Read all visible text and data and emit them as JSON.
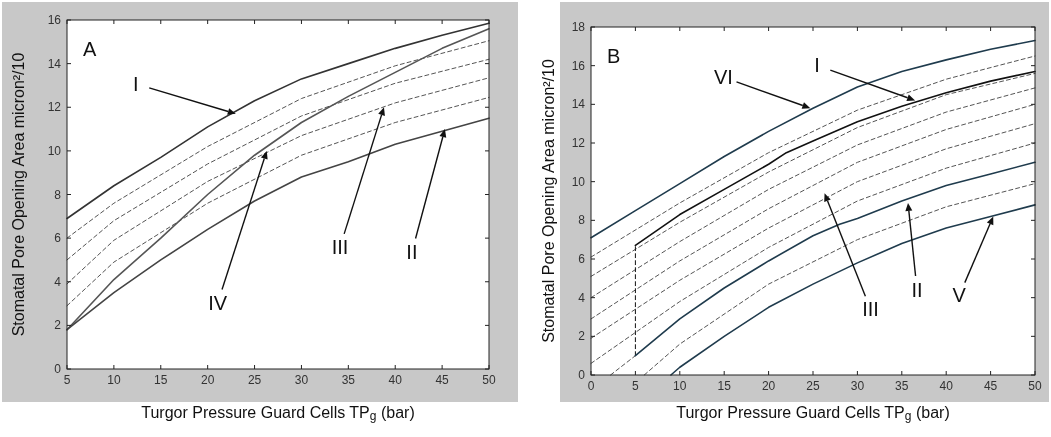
{
  "chart_data": [
    {
      "type": "line",
      "title": "A",
      "xlabel": "Turgor Pressure Guard Cells TP$_{g}$ (bar)",
      "ylabel": "Stomatal Pore Opening Area micron²/10",
      "xlim": [
        5,
        50
      ],
      "xticks": [
        5,
        10,
        15,
        20,
        25,
        30,
        35,
        40,
        45,
        50
      ],
      "ylim": [
        0,
        16
      ],
      "yticks": [
        0,
        2,
        4,
        6,
        8,
        10,
        12,
        14,
        16
      ],
      "grid": false,
      "series": [
        {
          "color": "#333333",
          "line_style": "solid",
          "x": [
            5,
            10,
            15,
            20,
            25,
            30,
            35,
            40,
            45,
            50
          ],
          "values": [
            6.9,
            8.4,
            9.7,
            11.1,
            12.3,
            13.3,
            14.0,
            14.7,
            15.3,
            15.85
          ]
        },
        {
          "color": "#555555",
          "line_style": "dashed",
          "x": [
            5,
            10,
            20,
            30,
            40,
            50
          ],
          "values": [
            6.0,
            7.6,
            10.2,
            12.4,
            13.9,
            15.05
          ]
        },
        {
          "color": "#555555",
          "line_style": "dashed",
          "x": [
            5,
            10,
            20,
            30,
            40,
            50
          ],
          "values": [
            5.0,
            6.8,
            9.4,
            11.6,
            13.1,
            14.2
          ]
        },
        {
          "color": "#555555",
          "line_style": "dashed",
          "x": [
            5,
            10,
            20,
            30,
            40,
            50
          ],
          "values": [
            3.9,
            5.9,
            8.6,
            10.7,
            12.2,
            13.35
          ]
        },
        {
          "color": "#555555",
          "line_style": "dashed",
          "x": [
            5,
            10,
            20,
            30,
            40,
            50
          ],
          "values": [
            2.9,
            4.9,
            7.6,
            9.8,
            11.3,
            12.45
          ]
        },
        {
          "color": "#555555",
          "line_style": "solid",
          "x": [
            5,
            10,
            15,
            20,
            25,
            30,
            35,
            40,
            45,
            50
          ],
          "values": [
            1.8,
            4.1,
            6.0,
            8.0,
            9.8,
            11.3,
            12.5,
            13.6,
            14.7,
            15.6
          ]
        },
        {
          "color": "#444444",
          "line_style": "solid",
          "x": [
            5,
            10,
            15,
            20,
            25,
            30,
            35,
            40,
            45,
            50
          ],
          "values": [
            1.8,
            3.5,
            5.0,
            6.4,
            7.7,
            8.8,
            9.5,
            10.3,
            10.9,
            11.5
          ]
        }
      ],
      "annotations": [
        {
          "text": "I",
          "x": 23,
          "y": 11.7
        },
        {
          "text": "IV",
          "x": 26.3,
          "y": 10.0
        },
        {
          "text": "III",
          "x": 38.8,
          "y": 12.0
        },
        {
          "text": "II",
          "x": 45.3,
          "y": 11.0
        }
      ]
    },
    {
      "type": "line",
      "title": "B",
      "xlabel": "Turgor Pressure Guard Cells TP$_{g}$ (bar)",
      "ylabel": "Stomatal Pore Opening Area micron²/10",
      "xlim": [
        0,
        50
      ],
      "xticks": [
        0,
        5,
        10,
        15,
        20,
        25,
        30,
        35,
        40,
        45,
        50
      ],
      "ylim": [
        0,
        18
      ],
      "yticks": [
        0,
        2,
        4,
        6,
        8,
        10,
        12,
        14,
        16,
        18
      ],
      "grid": false,
      "series": [
        {
          "color": "#555555",
          "line_style": "dashed",
          "x": [
            0,
            10,
            20,
            30,
            40,
            50
          ],
          "values": [
            6.1,
            8.9,
            11.5,
            13.7,
            15.3,
            16.5
          ]
        },
        {
          "color": "#555555",
          "line_style": "dashed",
          "x": [
            0,
            10,
            20,
            30,
            40,
            50
          ],
          "values": [
            5.1,
            7.9,
            10.5,
            12.8,
            14.5,
            15.6
          ]
        },
        {
          "color": "#555555",
          "line_style": "dashed",
          "x": [
            0,
            10,
            20,
            30,
            40,
            50
          ],
          "values": [
            4.0,
            6.9,
            9.6,
            11.9,
            13.6,
            14.85
          ]
        },
        {
          "color": "#555555",
          "line_style": "dashed",
          "x": [
            0,
            10,
            20,
            30,
            40,
            50
          ],
          "values": [
            2.9,
            5.9,
            8.6,
            11.0,
            12.7,
            14.0
          ]
        },
        {
          "color": "#555555",
          "line_style": "dashed",
          "x": [
            0,
            10,
            20,
            30,
            40,
            50
          ],
          "values": [
            1.9,
            4.9,
            7.6,
            10.0,
            11.7,
            13.0
          ]
        },
        {
          "color": "#555555",
          "line_style": "dashed",
          "x": [
            0,
            10,
            20,
            30,
            40,
            50
          ],
          "values": [
            0.6,
            3.8,
            6.6,
            9.0,
            10.7,
            12.0
          ]
        },
        {
          "color": "#555555",
          "line_style": "dashed",
          "x": [
            2.2,
            5
          ],
          "values": [
            0,
            1.0
          ]
        },
        {
          "color": "#555555",
          "line_style": "dashed",
          "x": [
            6,
            10,
            20,
            30,
            40,
            50
          ],
          "values": [
            0,
            1.6,
            4.7,
            7.0,
            8.7,
            9.9
          ]
        },
        {
          "color": "#1f3b4d",
          "line_style": "solid",
          "x": [
            0,
            5,
            10,
            15,
            20,
            25,
            30,
            35,
            40,
            45,
            50
          ],
          "values": [
            7.1,
            8.5,
            9.9,
            11.3,
            12.6,
            13.8,
            14.9,
            15.7,
            16.3,
            16.85,
            17.3
          ]
        },
        {
          "color": "#111111",
          "line_style": "solid",
          "x": [
            5,
            10,
            15,
            20,
            22,
            25,
            30,
            35,
            40,
            45,
            50
          ],
          "values": [
            6.7,
            8.3,
            9.6,
            10.9,
            11.5,
            12.1,
            13.1,
            13.9,
            14.6,
            15.2,
            15.7
          ]
        },
        {
          "color": "#111111",
          "line_style": "dashed",
          "x": [
            5,
            5
          ],
          "values": [
            1.0,
            6.7
          ]
        },
        {
          "color": "#1f3b4d",
          "line_style": "solid",
          "x": [
            5,
            10,
            15,
            20,
            25,
            28,
            30,
            35,
            40,
            45,
            50
          ],
          "values": [
            1.0,
            2.9,
            4.5,
            5.9,
            7.2,
            7.8,
            8.1,
            9.0,
            9.8,
            10.4,
            11.0
          ]
        },
        {
          "color": "#1f3b4d",
          "line_style": "solid",
          "x": [
            9,
            10,
            15,
            20,
            25,
            30,
            35,
            40,
            45,
            50
          ],
          "values": [
            0,
            0.4,
            2.0,
            3.5,
            4.7,
            5.8,
            6.8,
            7.6,
            8.2,
            8.8
          ]
        }
      ],
      "annotations": [
        {
          "text": "VI",
          "x": 24.7,
          "y": 13.8
        },
        {
          "text": "I",
          "x": 36.5,
          "y": 14.2
        },
        {
          "text": "III",
          "x": 26.3,
          "y": 9.4
        },
        {
          "text": "II",
          "x": 35.7,
          "y": 8.9
        },
        {
          "text": "V",
          "x": 45.3,
          "y": 8.2
        }
      ]
    }
  ]
}
